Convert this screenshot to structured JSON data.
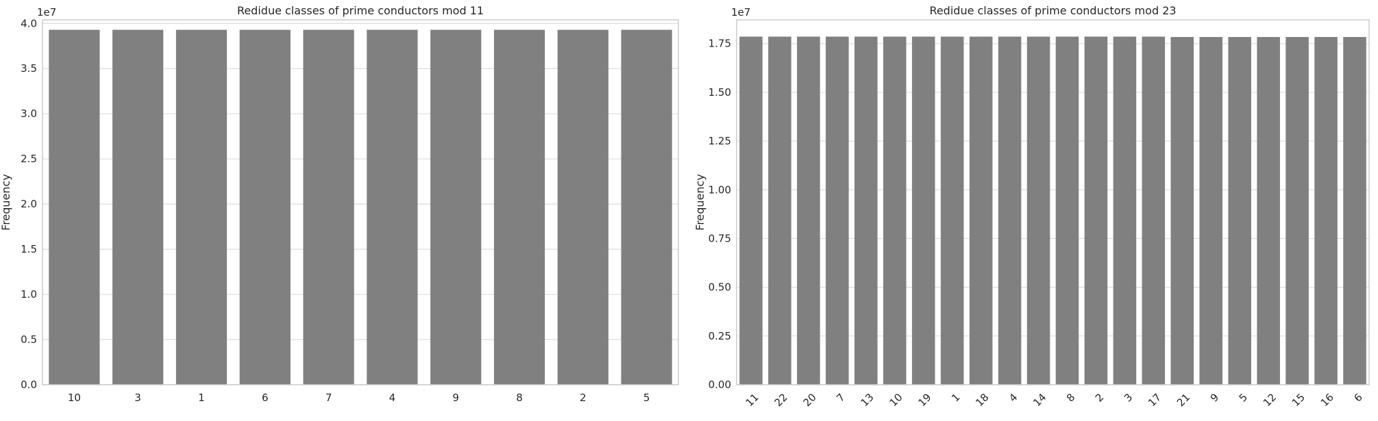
{
  "chart_data": [
    {
      "type": "bar",
      "title": "Redidue classes of prime conductors mod 11",
      "xlabel": "",
      "ylabel": "Frequency",
      "offset_label": "1e7",
      "categories": [
        "10",
        "3",
        "1",
        "6",
        "7",
        "4",
        "9",
        "8",
        "2",
        "5"
      ],
      "values": [
        39300000,
        39300000,
        39300000,
        39300000,
        39300000,
        39300000,
        39300000,
        39300000,
        39300000,
        39300000
      ],
      "ylim": [
        0,
        40400000
      ],
      "yticks": [
        0,
        5000000,
        10000000,
        15000000,
        20000000,
        25000000,
        30000000,
        35000000,
        40000000
      ],
      "ytick_labels": [
        "0.0",
        "0.5",
        "1.0",
        "1.5",
        "2.0",
        "2.5",
        "3.0",
        "3.5",
        "4.0"
      ],
      "x_tick_rotation": 0,
      "bar_color": "#808080",
      "grid": "horizontal"
    },
    {
      "type": "bar",
      "title": "Redidue classes of prime conductors mod 23",
      "xlabel": "",
      "ylabel": "Frequency",
      "offset_label": "1e7",
      "categories": [
        "11",
        "22",
        "20",
        "7",
        "13",
        "10",
        "19",
        "1",
        "18",
        "4",
        "14",
        "8",
        "2",
        "3",
        "17",
        "21",
        "9",
        "5",
        "12",
        "15",
        "16",
        "6"
      ],
      "values": [
        17860000,
        17860000,
        17860000,
        17860000,
        17860000,
        17860000,
        17860000,
        17860000,
        17860000,
        17860000,
        17860000,
        17860000,
        17860000,
        17860000,
        17860000,
        17840000,
        17840000,
        17840000,
        17840000,
        17840000,
        17840000,
        17840000
      ],
      "ylim": [
        0,
        18720000
      ],
      "yticks": [
        0,
        2500000,
        5000000,
        7500000,
        10000000,
        12500000,
        15000000,
        17500000
      ],
      "ytick_labels": [
        "0.00",
        "0.25",
        "0.50",
        "0.75",
        "1.00",
        "1.25",
        "1.50",
        "1.75"
      ],
      "x_tick_rotation": -45,
      "bar_color": "#808080",
      "grid": "horizontal"
    }
  ]
}
